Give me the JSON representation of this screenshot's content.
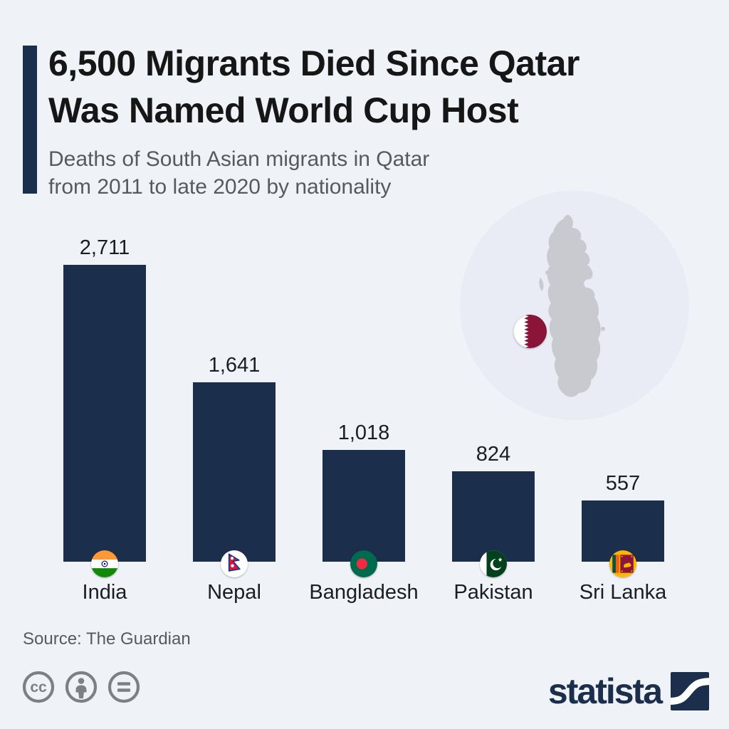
{
  "header": {
    "title_line1": "6,500 Migrants Died Since Qatar",
    "title_line2": "Was Named World Cup Host",
    "subtitle_line1": "Deaths of South Asian migrants in Qatar",
    "subtitle_line2": "from 2011 to late 2020 by nationality"
  },
  "chart_data": {
    "type": "bar",
    "title": "6,500 Migrants Died Since Qatar Was Named World Cup Host",
    "subtitle": "Deaths of South Asian migrants in Qatar from 2011 to late 2020 by nationality",
    "categories": [
      "India",
      "Nepal",
      "Bangladesh",
      "Pakistan",
      "Sri Lanka"
    ],
    "values": [
      2711,
      1641,
      1018,
      824,
      557
    ],
    "value_labels": [
      "2,711",
      "1,641",
      "1,018",
      "824",
      "557"
    ],
    "ylim": [
      0,
      2711
    ],
    "grid": false,
    "legend": false,
    "orientation": "vertical",
    "bar_color": "#1b2e4b",
    "flag_icons": [
      "india-flag-icon",
      "nepal-flag-icon",
      "bangladesh-flag-icon",
      "pakistan-flag-icon",
      "sri-lanka-flag-icon"
    ]
  },
  "map": {
    "region": "Qatar",
    "marker_icon": "qatar-flag-icon"
  },
  "footer": {
    "source": "Source: The Guardian",
    "license_icons": [
      "cc-icon",
      "attribution-icon",
      "no-derivatives-icon"
    ],
    "brand": "statista"
  },
  "colors": {
    "background": "#eff3f8",
    "bar_navy": "#1b2e4b",
    "title_text": "#161616",
    "subtitle_gray": "#58595c",
    "license_gray": "#7c8082",
    "map_circle_bg": "#e9ecf4",
    "map_silhouette": "#c9cacf",
    "qatar_flag_maroon": "#8a1538"
  }
}
